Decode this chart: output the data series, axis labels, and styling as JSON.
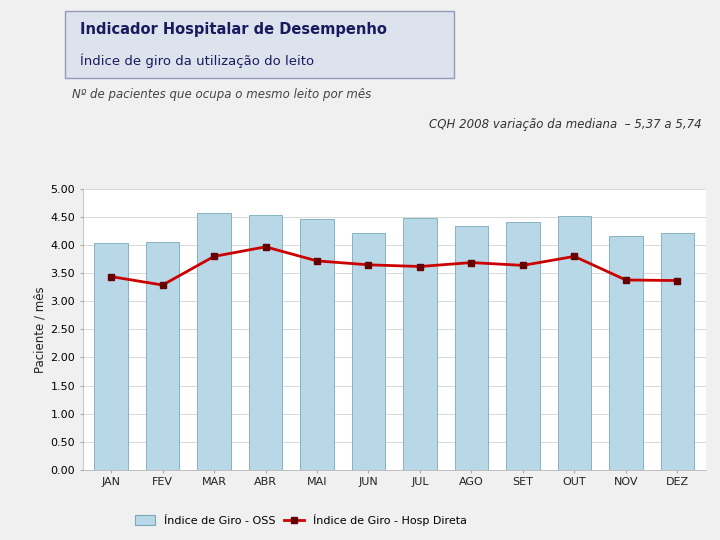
{
  "title_line1": "Indicador Hospitalar de Desempenho",
  "title_line2": "Índice de giro da utilização do leito",
  "subtitle": "Nº de pacientes que ocupa o mesmo leito por mês",
  "annotation": "CQH 2008 variação da mediana  – 5,37 a 5,74",
  "months": [
    "JAN",
    "FEV",
    "MAR",
    "ABR",
    "MAI",
    "JUN",
    "JUL",
    "AGO",
    "SET",
    "OUT",
    "NOV",
    "DEZ"
  ],
  "oss_values": [
    4.04,
    4.06,
    4.57,
    4.53,
    4.46,
    4.21,
    4.49,
    4.35,
    4.41,
    4.52,
    4.16,
    4.21
  ],
  "hosp_values": [
    3.44,
    3.29,
    3.8,
    3.97,
    3.72,
    3.65,
    3.62,
    3.69,
    3.64,
    3.8,
    3.38,
    3.37
  ],
  "bar_color_top": "#b8d8e8",
  "bar_color_bottom": "#88b8cc",
  "bar_edge_color": "#7aaab8",
  "line_color": "#cc0000",
  "marker_color": "#660000",
  "marker_style": "s",
  "ylabel": "Paciente / mês",
  "ylim": [
    0,
    5.0
  ],
  "yticks": [
    0.0,
    0.5,
    1.0,
    1.5,
    2.0,
    2.5,
    3.0,
    3.5,
    4.0,
    4.5,
    5.0
  ],
  "legend_oss": "Índice de Giro - OSS",
  "legend_hosp": "Índice de Giro - Hosp Direta",
  "bg_color": "#f0f0f0",
  "plot_bg_color": "#ffffff",
  "title_box_facecolor": "#dde3ed",
  "title_box_edgecolor": "#9999bb",
  "title_color1": "#1a1a5e",
  "title_color2": "#1a1a5e"
}
